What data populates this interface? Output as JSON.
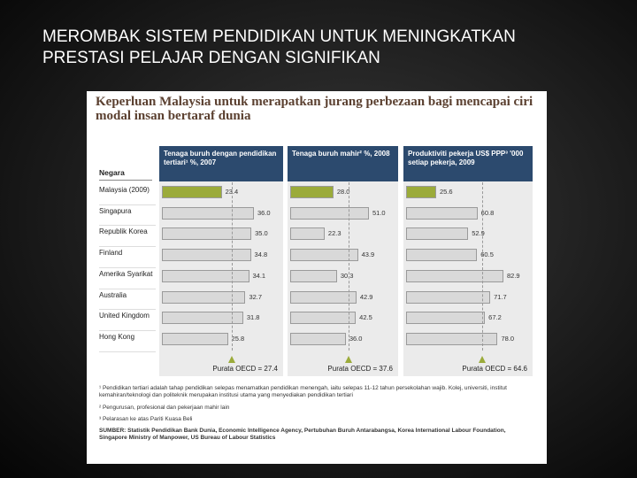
{
  "slide_title": "MEROMBAK SISTEM PENDIDIKAN UNTUK MENINGKATKAN PRESTASI PELAJAR DENGAN SIGNIFIKAN",
  "figure_title": "Keperluan Malaysia untuk merapatkan jurang perbezaan bagi mencapai ciri modal insan bertaraf dunia",
  "category_header": "Negara",
  "chart_data": [
    {
      "type": "bar",
      "orientation": "horizontal",
      "title": "Tenaga buruh dengan pendidikan tertiari¹ %, 2007",
      "categories": [
        "Malaysia (2009)",
        "Singapura",
        "Republik Korea",
        "Finland",
        "Amerika Syarikat",
        "Australia",
        "United Kingdom",
        "Hong Kong"
      ],
      "values": [
        23.4,
        36.0,
        35.0,
        34.8,
        34.1,
        32.7,
        31.8,
        25.8
      ],
      "value_labels": [
        "23.4",
        "36.0",
        "35.0",
        "34.8",
        "34.1",
        "32.7",
        "31.8",
        "25.8"
      ],
      "colors": [
        "#9bab3a",
        "#d9d9d9",
        "#d9d9d9",
        "#d9d9d9",
        "#d9d9d9",
        "#d9d9d9",
        "#d9d9d9",
        "#d9d9d9"
      ],
      "reference": {
        "value": 27.4,
        "label": "Purata OECD = 27.4"
      }
    },
    {
      "type": "bar",
      "orientation": "horizontal",
      "title": "Tenaga buruh mahir² %, 2008",
      "categories": [
        "Malaysia (2009)",
        "Singapura",
        "Republik Korea",
        "Finland",
        "Amerika Syarikat",
        "Australia",
        "United Kingdom",
        "Hong Kong"
      ],
      "values": [
        28.0,
        51.0,
        22.3,
        43.9,
        30.3,
        42.9,
        42.5,
        36.0
      ],
      "value_labels": [
        "28.0",
        "51.0",
        "22.3",
        "43.9",
        "30.3",
        "42.9",
        "42.5",
        "36.0"
      ],
      "colors": [
        "#9bab3a",
        "#d9d9d9",
        "#d9d9d9",
        "#d9d9d9",
        "#d9d9d9",
        "#d9d9d9",
        "#d9d9d9",
        "#d9d9d9"
      ],
      "reference": {
        "value": 37.6,
        "label": "Purata OECD = 37.6"
      }
    },
    {
      "type": "bar",
      "orientation": "horizontal",
      "title": "Produktiviti pekerja US$ PPP³ '000 setiap pekerja, 2009",
      "categories": [
        "Malaysia (2009)",
        "Singapura",
        "Republik Korea",
        "Finland",
        "Amerika Syarikat",
        "Australia",
        "United Kingdom",
        "Hong Kong"
      ],
      "values": [
        25.6,
        60.8,
        52.9,
        60.5,
        82.9,
        71.7,
        67.2,
        78.0
      ],
      "value_labels": [
        "25.6",
        "60.8",
        "52.9",
        "60.5",
        "82.9",
        "71.7",
        "67.2",
        "78.0"
      ],
      "colors": [
        "#9bab3a",
        "#d9d9d9",
        "#d9d9d9",
        "#d9d9d9",
        "#d9d9d9",
        "#d9d9d9",
        "#d9d9d9",
        "#d9d9d9"
      ],
      "reference": {
        "value": 64.6,
        "label": "Purata OECD = 64.6"
      }
    }
  ],
  "footnotes": [
    "¹ Pendidikan tertiari adalah tahap pendidikan selepas menamatkan pendidikan menengah, iaitu selepas 11-12 tahun persekolahan wajib. Kolej, universiti, institut kemahiran/teknologi dan politeknik merupakan institusi utama yang menyediakan pendidikan tertiari",
    "² Pengurusan, profesional dan pekerjaan mahir lain",
    "³ Pelarasan ke atas Pariti Kuasa Beli",
    "SUMBER: Statistik Pendidikan Bank Dunia, Economic Intelligence Agency, Pertubuhan Buruh Antarabangsa, Korea International Labour Foundation, Singapore Ministry of Manpower, US Bureau of Labour Statistics"
  ]
}
